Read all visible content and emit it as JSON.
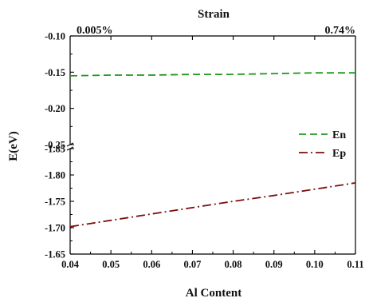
{
  "chart_data": {
    "type": "line",
    "title": "Strain",
    "xlabel": "Al Content",
    "ylabel": "E(eV)",
    "xlim": [
      0.04,
      0.11
    ],
    "x_ticks": [
      "0.04",
      "0.05",
      "0.06",
      "0.07",
      "0.08",
      "0.09",
      "0.10",
      "0.11"
    ],
    "top_axis_labels": {
      "left": "0.005%",
      "right": "0.74%"
    },
    "y_axis_break": true,
    "upper_panel": {
      "ylim": [
        -0.25,
        -0.1
      ],
      "y_ticks": [
        "-0.10",
        "-0.15",
        "-0.20",
        "-0.25"
      ]
    },
    "lower_panel": {
      "ylim": [
        -1.85,
        -1.65
      ],
      "y_ticks": [
        "-1.65",
        "-1.70",
        "-1.75",
        "-1.80",
        "-1.85"
      ]
    },
    "series": [
      {
        "name": "En",
        "color": "#1f9a1f",
        "line_style": "dashed",
        "panel": "upper",
        "x": [
          0.04,
          0.05,
          0.06,
          0.07,
          0.08,
          0.09,
          0.1,
          0.11
        ],
        "y": [
          -0.155,
          -0.154,
          -0.154,
          -0.153,
          -0.153,
          -0.152,
          -0.151,
          -0.151
        ]
      },
      {
        "name": "Ep",
        "color": "#7a1010",
        "line_style": "dash-dot",
        "panel": "lower",
        "x": [
          0.04,
          0.05,
          0.06,
          0.07,
          0.08,
          0.09,
          0.1,
          0.11
        ],
        "y": [
          -1.702,
          -1.714,
          -1.726,
          -1.738,
          -1.75,
          -1.761,
          -1.773,
          -1.785
        ]
      }
    ],
    "legend_position": "right"
  }
}
